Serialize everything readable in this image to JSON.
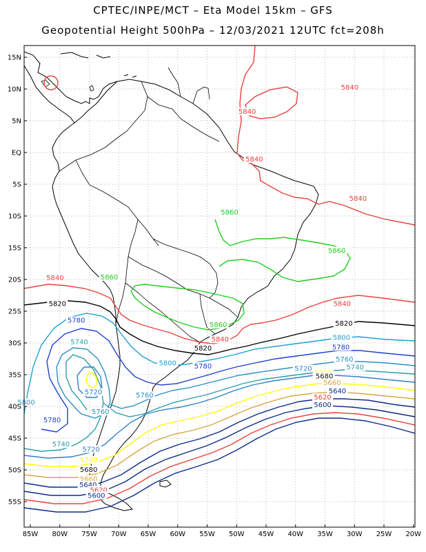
{
  "header": {
    "line1": "CPTEC/INPE/MCT –  Eta Model 15km – GFS",
    "line2": "Geopotential Height 500hPa – 12/03/2021 12UTC fct=208h"
  },
  "axes": {
    "lat_ticks": [
      "15N",
      "10N",
      "5N",
      "EQ",
      "5S",
      "10S",
      "15S",
      "20S",
      "25S",
      "30S",
      "35S",
      "40S",
      "45S",
      "50S",
      "55S"
    ],
    "lon_ticks": [
      "85W",
      "80W",
      "75W",
      "70W",
      "65W",
      "60W",
      "55W",
      "50W",
      "45W",
      "40W",
      "35W",
      "30W",
      "25W",
      "20W"
    ]
  },
  "contours": [
    {
      "level": "5840",
      "color": "#e8403c"
    },
    {
      "level": "5820",
      "color": "#000000"
    },
    {
      "level": "5800",
      "color": "#1ea0d2"
    },
    {
      "level": "5780",
      "color": "#1f3fcf"
    },
    {
      "level": "5760",
      "color": "#2a8fc4"
    },
    {
      "level": "5740",
      "color": "#2a9fa8"
    },
    {
      "level": "5720",
      "color": "#2f7fc8"
    },
    {
      "level": "5700",
      "color": "#ffff00"
    },
    {
      "level": "5680",
      "color": "#d9a540"
    },
    {
      "level": "5660",
      "color": "#0b2a8a"
    },
    {
      "level": "5620",
      "color": "#e8403c"
    },
    {
      "level": "5860",
      "color": "#22cc22"
    }
  ],
  "labels": [
    {
      "text": "5840",
      "lon": -30.8,
      "lat": 10.0,
      "color": "#e8403c"
    },
    {
      "text": "5840",
      "lon": -48.2,
      "lat": 6.2,
      "color": "#e8403c"
    },
    {
      "text": "5840",
      "lon": -47.0,
      "lat": -1.3,
      "color": "#e8403c"
    },
    {
      "text": "5840",
      "lon": -29.4,
      "lat": -7.5,
      "color": "#e8403c"
    },
    {
      "text": "5840",
      "lon": -80.8,
      "lat": -20.0,
      "color": "#e8403c"
    },
    {
      "text": "5840",
      "lon": -32.1,
      "lat": -24.1,
      "color": "#e8403c"
    },
    {
      "text": "5840",
      "lon": -52.8,
      "lat": -29.7,
      "color": "#e8403c"
    },
    {
      "text": "5820",
      "lon": -80.4,
      "lat": -24.1,
      "color": "#000000"
    },
    {
      "text": "5820",
      "lon": -31.8,
      "lat": -27.2,
      "color": "#000000"
    },
    {
      "text": "5820",
      "lon": -55.7,
      "lat": -31.1,
      "color": "#000000"
    },
    {
      "text": "5800",
      "lon": -32.2,
      "lat": -29.4,
      "color": "#1ea0d2"
    },
    {
      "text": "5800",
      "lon": -61.7,
      "lat": -33.4,
      "color": "#1ea0d2"
    },
    {
      "text": "5800",
      "lon": -85.7,
      "lat": -39.6,
      "color": "#1ea0d2"
    },
    {
      "text": "5780",
      "lon": -77.2,
      "lat": -26.7,
      "color": "#1f3fcf"
    },
    {
      "text": "5780",
      "lon": -32.3,
      "lat": -30.9,
      "color": "#1f3fcf"
    },
    {
      "text": "5780",
      "lon": -55.7,
      "lat": -33.9,
      "color": "#1f3fcf"
    },
    {
      "text": "5780",
      "lon": -81.3,
      "lat": -42.4,
      "color": "#1f3fcf"
    },
    {
      "text": "5760",
      "lon": -31.7,
      "lat": -32.8,
      "color": "#2a8fc4"
    },
    {
      "text": "5760",
      "lon": -65.6,
      "lat": -38.5,
      "color": "#2a8fc4"
    },
    {
      "text": "5760",
      "lon": -73.1,
      "lat": -41.1,
      "color": "#2a8fc4"
    },
    {
      "text": "5740",
      "lon": -76.7,
      "lat": -30.1,
      "color": "#2a9fa8"
    },
    {
      "text": "5740",
      "lon": -29.9,
      "lat": -34.1,
      "color": "#2a9fa8"
    },
    {
      "text": "5740",
      "lon": -79.8,
      "lat": -46.2,
      "color": "#2a9fa8"
    },
    {
      "text": "5720",
      "lon": -38.7,
      "lat": -34.3,
      "color": "#2f7fc8"
    },
    {
      "text": "5720",
      "lon": -74.3,
      "lat": -38.0,
      "color": "#2f7fc8"
    },
    {
      "text": "5720",
      "lon": -74.7,
      "lat": -47.0,
      "color": "#2f7fc8"
    },
    {
      "text": "5700",
      "lon": -35.3,
      "lat": -35.0,
      "color": "#ffff00"
    },
    {
      "text": "5700",
      "lon": -75.1,
      "lat": -48.7,
      "color": "#ffff00"
    },
    {
      "text": "5680",
      "lon": -35.1,
      "lat": -35.5,
      "color": "#111111"
    },
    {
      "text": "5680",
      "lon": -75.1,
      "lat": -50.2,
      "color": "#111111"
    },
    {
      "text": "5660",
      "lon": -33.8,
      "lat": -36.5,
      "color": "#d9a540"
    },
    {
      "text": "5660",
      "lon": -75.1,
      "lat": -51.7,
      "color": "#d9a540"
    },
    {
      "text": "5640",
      "lon": -32.9,
      "lat": -37.8,
      "color": "#0b2a8a"
    },
    {
      "text": "5640",
      "lon": -75.2,
      "lat": -52.6,
      "color": "#0b2a8a"
    },
    {
      "text": "5620",
      "lon": -35.4,
      "lat": -38.8,
      "color": "#e8403c"
    },
    {
      "text": "5620",
      "lon": -73.4,
      "lat": -53.4,
      "color": "#e8403c"
    },
    {
      "text": "5600",
      "lon": -35.4,
      "lat": -40.0,
      "color": "#0b2a8a"
    },
    {
      "text": "5600",
      "lon": -73.8,
      "lat": -54.3,
      "color": "#0b2a8a"
    },
    {
      "text": "5860",
      "lon": -51.2,
      "lat": -9.7,
      "color": "#22cc22"
    },
    {
      "text": "5860",
      "lon": -33.0,
      "lat": -15.7,
      "color": "#22cc22"
    },
    {
      "text": "5860",
      "lon": -71.6,
      "lat": -19.9,
      "color": "#22cc22"
    },
    {
      "text": "5860",
      "lon": -53.1,
      "lat": -27.4,
      "color": "#22cc22"
    }
  ]
}
